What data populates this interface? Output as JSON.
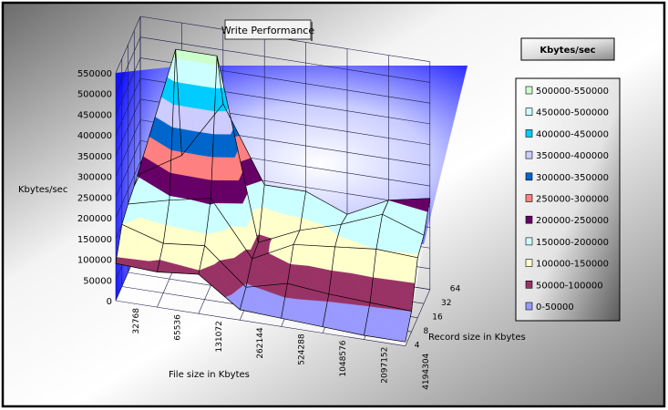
{
  "chart_data": {
    "type": "surface",
    "title": "Write Performance",
    "zlabel": "Kbytes/sec",
    "xlabel": "File size in Kbytes",
    "ylabel": "Record size in Kbytes",
    "z_ticks": [
      "0",
      "50000",
      "100000",
      "150000",
      "200000",
      "250000",
      "300000",
      "350000",
      "400000",
      "450000",
      "500000",
      "550000"
    ],
    "zlim": [
      0,
      550000
    ],
    "file_sizes": [
      "32768",
      "65536",
      "131072",
      "262144",
      "524288",
      "1048576",
      "2097152",
      "4194304"
    ],
    "record_sizes": [
      "4",
      "8",
      "16",
      "32",
      "64"
    ],
    "values": [
      [
        90000,
        85000,
        95000,
        25000,
        20000,
        15000,
        10000,
        10000
      ],
      [
        150000,
        120000,
        130000,
        45000,
        70000,
        60000,
        55000,
        50000
      ],
      [
        165000,
        190000,
        210000,
        80000,
        130000,
        140000,
        150000,
        145000
      ],
      [
        175000,
        520000,
        520000,
        85000,
        130000,
        160000,
        200000,
        165000
      ],
      [
        170000,
        230000,
        370000,
        190000,
        190000,
        150000,
        200000,
        220000
      ]
    ],
    "legend": {
      "title": "Kbytes/sec",
      "items": [
        {
          "label": "500000-550000",
          "color": "#ccffcc"
        },
        {
          "label": "450000-500000",
          "color": "#ccffff"
        },
        {
          "label": "400000-450000",
          "color": "#00ccff"
        },
        {
          "label": "350000-400000",
          "color": "#ccccff"
        },
        {
          "label": "300000-350000",
          "color": "#0066cc"
        },
        {
          "label": "250000-300000",
          "color": "#ff8080"
        },
        {
          "label": "200000-250000",
          "color": "#660066"
        },
        {
          "label": "150000-200000",
          "color": "#ccffff"
        },
        {
          "label": "100000-150000",
          "color": "#ffffcc"
        },
        {
          "label": "50000-100000",
          "color": "#993366"
        },
        {
          "label": "0-50000",
          "color": "#9999ff"
        }
      ]
    }
  }
}
